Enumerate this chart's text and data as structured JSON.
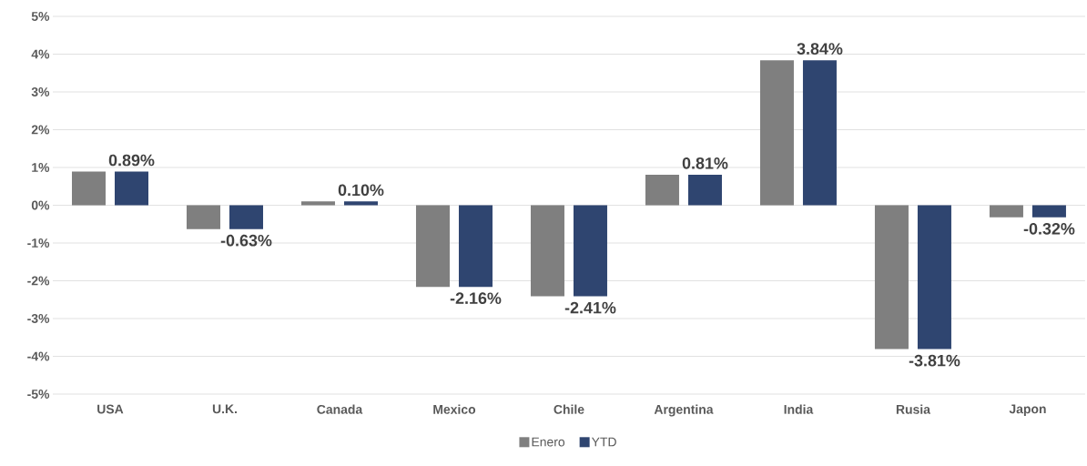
{
  "chart_data": {
    "type": "bar",
    "categories": [
      "USA",
      "U.K.",
      "Canada",
      "Mexico",
      "Chile",
      "Argentina",
      "India",
      "Rusia",
      "Japon"
    ],
    "series": [
      {
        "name": "Enero",
        "color": "#7f7f7f",
        "values": [
          0.89,
          -0.63,
          0.1,
          -2.16,
          -2.41,
          0.81,
          3.84,
          -3.81,
          -0.32
        ]
      },
      {
        "name": "YTD",
        "color": "#2f4570",
        "values": [
          0.89,
          -0.63,
          0.1,
          -2.16,
          -2.41,
          0.81,
          3.84,
          -3.81,
          -0.32
        ],
        "value_labels": [
          "0.89%",
          "-0.63%",
          "0.10%",
          "-2.16%",
          "-2.41%",
          "0.81%",
          "3.84%",
          "-3.81%",
          "-0.32%"
        ]
      }
    ],
    "ylim": [
      -5,
      5
    ],
    "yticks": [
      {
        "value": -5,
        "label": "-5%"
      },
      {
        "value": -4,
        "label": "-4%"
      },
      {
        "value": -3,
        "label": "-3%"
      },
      {
        "value": -2,
        "label": "-2%"
      },
      {
        "value": -1,
        "label": "-1%"
      },
      {
        "value": 0,
        "label": "0%"
      },
      {
        "value": 1,
        "label": "1%"
      },
      {
        "value": 2,
        "label": "2%"
      },
      {
        "value": 3,
        "label": "3%"
      },
      {
        "value": 4,
        "label": "4%"
      },
      {
        "value": 5,
        "label": "5%"
      }
    ],
    "grid": "y",
    "legend": "bottom"
  }
}
